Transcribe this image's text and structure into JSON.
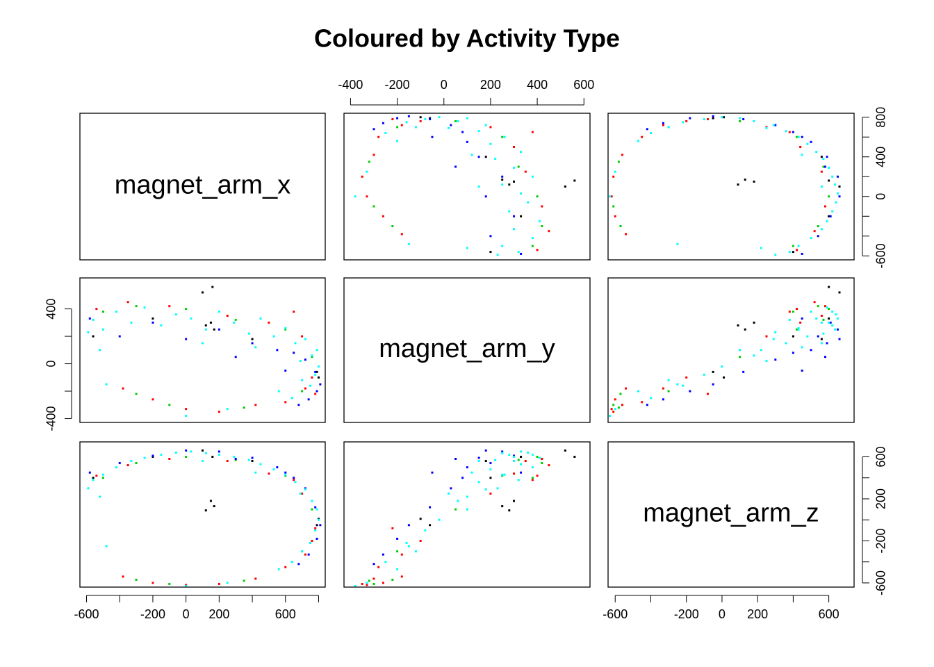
{
  "chart_data": {
    "type": "scatter_matrix",
    "title": "Coloured by Activity Type",
    "variables": [
      "magnet_arm_x",
      "magnet_arm_y",
      "magnet_arm_z"
    ],
    "lims": [
      [
        -640,
        840
      ],
      [
        -428,
        626
      ],
      [
        -640,
        742
      ]
    ],
    "axes": [
      {
        "variable": 0,
        "side": "bottom",
        "ticks": [
          -600,
          -200,
          0,
          200,
          600
        ],
        "minor_ticks": [
          -400,
          400,
          800
        ]
      },
      {
        "variable": 1,
        "side": "top",
        "ticks": [
          -400,
          -200,
          0,
          200,
          400,
          600
        ],
        "minor_ticks": []
      },
      {
        "variable": 2,
        "side": "bottom",
        "ticks": [
          -600,
          -200,
          0,
          200,
          600
        ],
        "minor_ticks": [
          -400,
          400
        ]
      },
      {
        "variable": 0,
        "side": "right",
        "ticks": [
          800,
          400,
          0,
          -600
        ],
        "minor_ticks": [
          600,
          200,
          -200,
          -400
        ]
      },
      {
        "variable": 1,
        "side": "left",
        "ticks": [
          400,
          0,
          -400
        ],
        "minor_ticks": [
          200,
          -200
        ]
      },
      {
        "variable": 2,
        "side": "right",
        "ticks": [
          600,
          200,
          -200,
          -600
        ],
        "minor_ticks": [
          400,
          0,
          -400
        ]
      }
    ],
    "series": [
      {
        "color": "#000000",
        "values": [
          [
            -560,
            200,
            400
          ],
          [
            -200,
            330,
            600
          ],
          [
            100,
            520,
            660
          ],
          [
            160,
            560,
            600
          ],
          [
            150,
            300,
            180
          ],
          [
            170,
            250,
            130
          ],
          [
            120,
            280,
            90
          ],
          [
            400,
            180,
            560
          ],
          [
            800,
            -100,
            10
          ],
          [
            790,
            -60,
            -50
          ]
        ]
      },
      {
        "color": "#ff0000",
        "values": [
          [
            -540,
            400,
            420
          ],
          [
            -350,
            450,
            520
          ],
          [
            -100,
            420,
            580
          ],
          [
            250,
            350,
            560
          ],
          [
            500,
            300,
            440
          ],
          [
            700,
            200,
            250
          ],
          [
            760,
            -100,
            -200
          ],
          [
            720,
            -180,
            -330
          ],
          [
            600,
            -280,
            -450
          ],
          [
            420,
            -300,
            -560
          ],
          [
            200,
            -350,
            -610
          ],
          [
            0,
            -330,
            -620
          ],
          [
            -200,
            -260,
            -600
          ],
          [
            -380,
            -180,
            -540
          ],
          [
            780,
            -220,
            -80
          ],
          [
            650,
            380,
            380
          ]
        ]
      },
      {
        "color": "#00cd00",
        "values": [
          [
            -500,
            380,
            400
          ],
          [
            -300,
            420,
            540
          ],
          [
            0,
            400,
            600
          ],
          [
            300,
            320,
            570
          ],
          [
            600,
            250,
            420
          ],
          [
            760,
            50,
            100
          ],
          [
            700,
            -200,
            -300
          ],
          [
            350,
            -320,
            -580
          ],
          [
            -100,
            -300,
            -610
          ],
          [
            -300,
            -220,
            -570
          ]
        ]
      },
      {
        "color": "#0000ff",
        "values": [
          [
            -580,
            330,
            450
          ],
          [
            -400,
            200,
            540
          ],
          [
            -200,
            300,
            610
          ],
          [
            0,
            180,
            660
          ],
          [
            200,
            250,
            650
          ],
          [
            400,
            150,
            590
          ],
          [
            550,
            100,
            500
          ],
          [
            650,
            80,
            400
          ],
          [
            720,
            30,
            300
          ],
          [
            780,
            -60,
            120
          ],
          [
            810,
            -150,
            -50
          ],
          [
            790,
            -200,
            -180
          ],
          [
            740,
            -260,
            -330
          ],
          [
            680,
            -300,
            -420
          ],
          [
            300,
            50,
            580
          ],
          [
            600,
            -50,
            450
          ]
        ]
      },
      {
        "color": "#00ffff",
        "values": [
          [
            -560,
            320,
            380
          ],
          [
            -500,
            250,
            430
          ],
          [
            -420,
            380,
            500
          ],
          [
            -330,
            300,
            560
          ],
          [
            -250,
            410,
            590
          ],
          [
            -150,
            280,
            620
          ],
          [
            -60,
            360,
            640
          ],
          [
            30,
            330,
            650
          ],
          [
            120,
            250,
            635
          ],
          [
            200,
            380,
            620
          ],
          [
            290,
            300,
            600
          ],
          [
            380,
            220,
            570
          ],
          [
            450,
            330,
            530
          ],
          [
            530,
            200,
            480
          ],
          [
            600,
            260,
            430
          ],
          [
            660,
            150,
            360
          ],
          [
            720,
            180,
            290
          ],
          [
            760,
            60,
            180
          ],
          [
            790,
            100,
            100
          ],
          [
            800,
            -20,
            0
          ],
          [
            780,
            -80,
            -100
          ],
          [
            750,
            -160,
            -220
          ],
          [
            700,
            -120,
            -300
          ],
          [
            640,
            -250,
            -400
          ],
          [
            560,
            -200,
            -470
          ],
          [
            -520,
            100,
            220
          ],
          [
            -590,
            230,
            300
          ],
          [
            100,
            150,
            560
          ],
          [
            420,
            120,
            450
          ],
          [
            690,
            20,
            250
          ],
          [
            -480,
            -150,
            -250
          ],
          [
            0,
            -380,
            -630
          ],
          [
            250,
            -330,
            -600
          ]
        ]
      }
    ]
  }
}
